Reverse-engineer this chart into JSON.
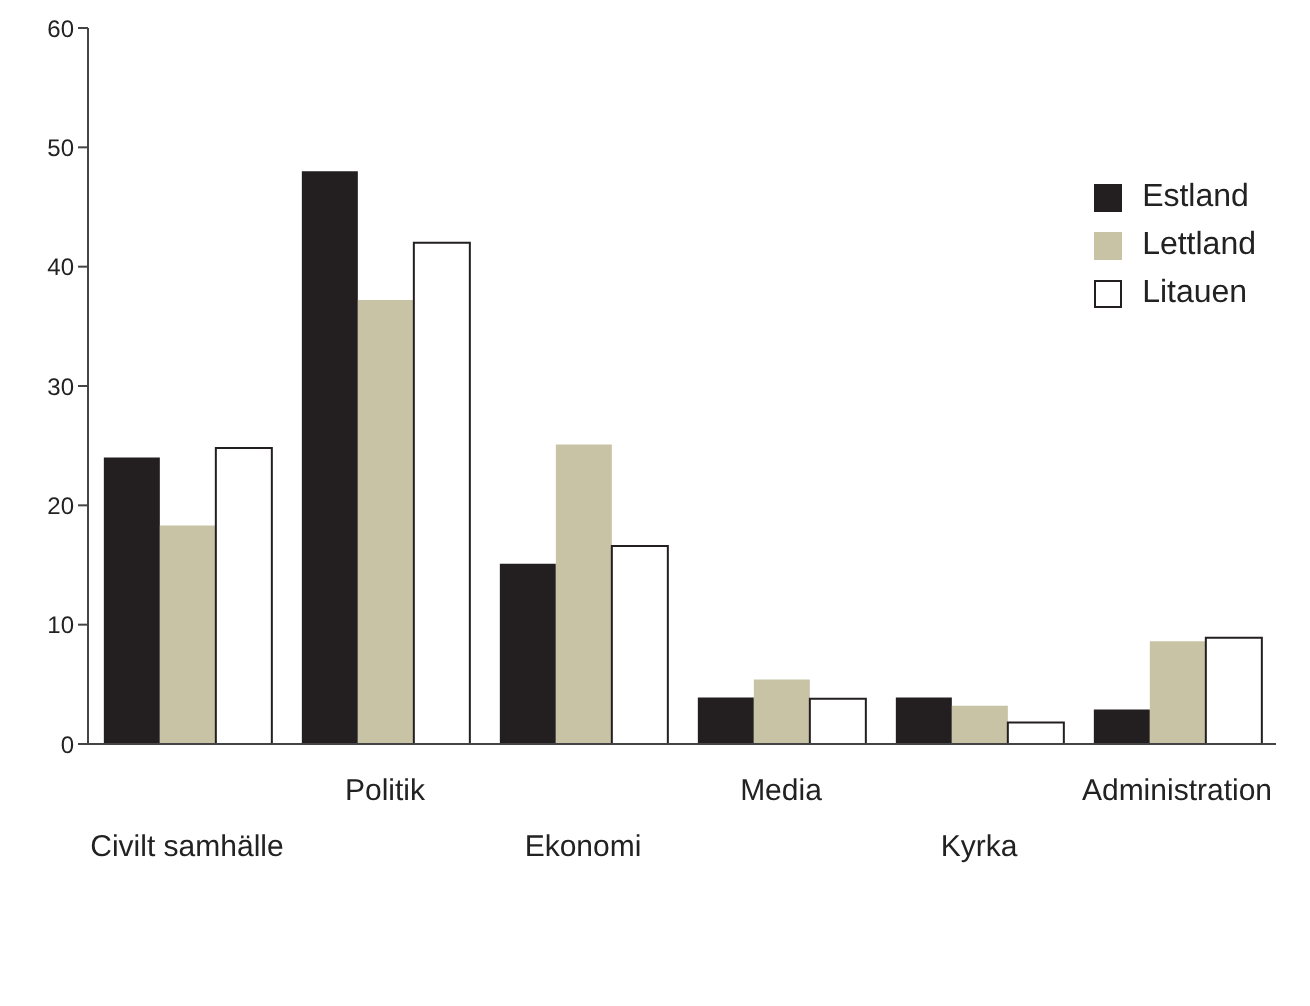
{
  "chart_data": {
    "type": "bar",
    "categories": [
      "Civilt samhälle",
      "Politik",
      "Ekonomi",
      "Media",
      "Kyrka",
      "Administration"
    ],
    "series": [
      {
        "name": "Estland",
        "color": "#231f20",
        "values": [
          24,
          48,
          15.1,
          3.9,
          3.9,
          2.9
        ]
      },
      {
        "name": "Lettland",
        "color": "#c8c3a4",
        "values": [
          18.3,
          37.2,
          25.1,
          5.4,
          3.2,
          8.6
        ]
      },
      {
        "name": "Litauen",
        "color": "#ffffff",
        "values": [
          24.8,
          42,
          16.6,
          3.8,
          1.8,
          8.9
        ]
      }
    ],
    "ylim": [
      0,
      60
    ],
    "yticks": [
      0,
      10,
      20,
      30,
      40,
      50,
      60
    ],
    "grid": false,
    "legend": "top right"
  }
}
